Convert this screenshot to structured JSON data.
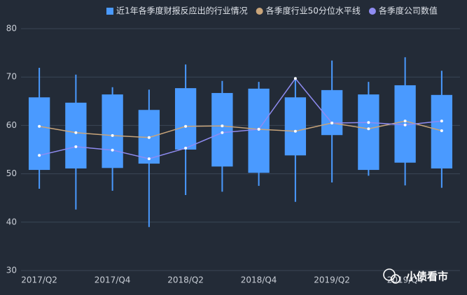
{
  "chart_data": {
    "type": "boxplot",
    "categories": [
      "2017/Q2",
      null,
      "2017/Q4",
      null,
      "2018/Q2",
      null,
      "2018/Q4",
      null,
      "2019/Q2",
      null,
      "2019/Q4",
      null
    ],
    "ylim": [
      30,
      80
    ],
    "yticks": [
      30,
      40,
      50,
      60,
      70,
      80
    ],
    "grid": true,
    "legend": "top",
    "series": [
      {
        "name": "近1年各季度财报反应出的行业情况",
        "type": "box",
        "color": "#4a9aff",
        "low": [
          46.9,
          42.6,
          46.5,
          39.0,
          45.6,
          46.3,
          47.5,
          44.2,
          48.2,
          49.6,
          47.6,
          47.1
        ],
        "q1": [
          50.8,
          51.1,
          51.2,
          52.1,
          55.0,
          51.5,
          50.2,
          53.8,
          58.0,
          50.8,
          52.3,
          51.1
        ],
        "q3": [
          65.8,
          64.7,
          66.4,
          63.2,
          67.7,
          66.7,
          67.6,
          65.8,
          67.3,
          66.4,
          68.3,
          66.3
        ],
        "high": [
          71.9,
          70.5,
          67.9,
          67.4,
          72.6,
          69.2,
          69.0,
          69.7,
          73.4,
          69.0,
          74.1,
          71.3
        ]
      },
      {
        "name": "各季度行业50分位水平线",
        "type": "line",
        "color": "#c9a57a",
        "values": [
          59.8,
          58.5,
          57.9,
          57.5,
          59.8,
          59.9,
          59.2,
          58.8,
          60.5,
          59.3,
          60.9,
          58.9
        ]
      },
      {
        "name": "各季度公司数值",
        "type": "line",
        "color": "#8f8cf2",
        "values": [
          53.8,
          55.6,
          54.9,
          53.1,
          55.3,
          58.5,
          59.2,
          69.7,
          60.5,
          60.6,
          60.1,
          60.9
        ]
      }
    ],
    "watermark": "小债看市"
  }
}
